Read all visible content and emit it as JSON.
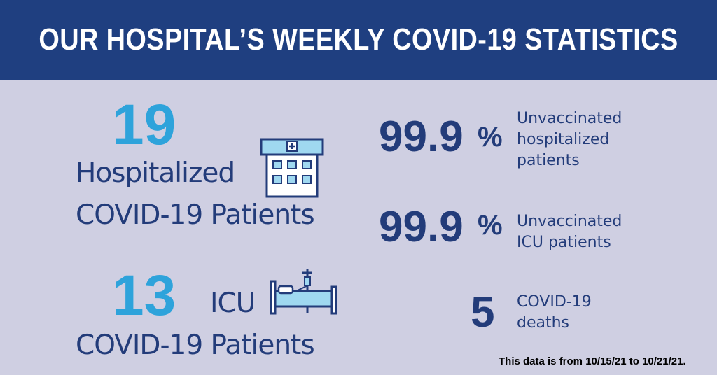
{
  "header": {
    "title": "OUR HOSPITAL’S WEEKLY COVID-19 STATISTICS"
  },
  "hospitalized": {
    "number": "19",
    "line1": "Hospitalized",
    "line2": "COVID-19 Patients"
  },
  "icu": {
    "number": "13",
    "line1": "ICU",
    "line2": "COVID-19 Patients"
  },
  "stats": [
    {
      "value": "99.9",
      "symbol": "%",
      "description": "Unvaccinated hospitalized patients"
    },
    {
      "value": "99.9",
      "symbol": "%",
      "description": "Unvaccinated ICU patients"
    },
    {
      "value": "5",
      "symbol": "",
      "description": "COVID-19 deaths"
    }
  ],
  "footnote": "This data is from 10/15/21 to 10/21/21.",
  "colors": {
    "banner": "#1f3f80",
    "background": "#cfcfe2",
    "accent": "#2ea3db",
    "navy": "#233c7a",
    "icon_fill": "#9fd8f0"
  },
  "icons": [
    "hospital-building-icon",
    "hospital-bed-icon"
  ]
}
